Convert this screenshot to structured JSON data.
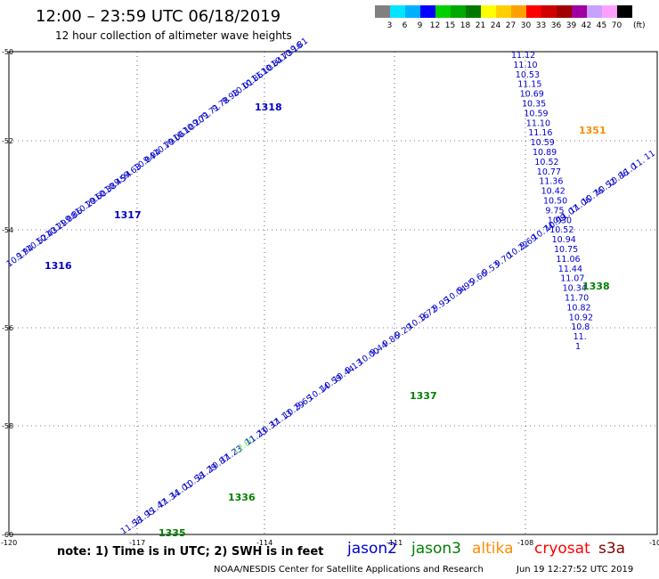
{
  "header": {
    "title": "12:00 – 23:59 UTC 06/18/2019",
    "subtitle": "12 hour collection of altimeter wave heights"
  },
  "colorbar": {
    "unit": "(ft)",
    "labels": [
      "3",
      "6",
      "9",
      "12",
      "15",
      "18",
      "21",
      "24",
      "27",
      "30",
      "33",
      "36",
      "39",
      "42",
      "45",
      "70"
    ],
    "colors": [
      "#808080",
      "#00e5ff",
      "#00b0ff",
      "#0000ff",
      "#00d000",
      "#00a800",
      "#007800",
      "#ffff00",
      "#ffd000",
      "#ffa000",
      "#ff0000",
      "#d00000",
      "#a00000",
      "#a000a0",
      "#c8a0ff",
      "#ffa0ff",
      "#000000"
    ]
  },
  "map": {
    "lat_labels": [
      "-50",
      "-52",
      "-54",
      "-56",
      "-58",
      "-60"
    ],
    "lon_labels": [
      "-120",
      "-117",
      "-114",
      "-111",
      "-108",
      "-105"
    ],
    "tracks": [
      {
        "pass": "1316",
        "sat": "jason2",
        "values": [
          "10.17",
          "9.94",
          "10.52",
          "10.43",
          "10.29",
          "11.08",
          "9.86",
          "10.29",
          "10.60",
          "10.38",
          "10.45",
          "9.94",
          "9.63",
          "10.04",
          "9.94",
          "10.79",
          "10.06",
          "10.10",
          "10.20",
          "9.71",
          "9.71",
          "9.78",
          "9.98",
          "10.01",
          "10.86",
          "11.10",
          "10.84",
          "10.73",
          "10.16",
          "9.81"
        ]
      },
      {
        "pass": "1317",
        "sat": "jason2"
      },
      {
        "pass": "1318",
        "sat": "jason2"
      },
      {
        "pass": "1351",
        "sat": "altika",
        "values": [
          "11.12",
          "11.10",
          "10.53",
          "11.15",
          "10.69",
          "10.35",
          "10.59",
          "11.10",
          "11.16",
          "10.59",
          "10.89",
          "10.52",
          "10.77",
          "11.36",
          "10.42",
          "10.50",
          "9.75",
          "10.30",
          "10.52",
          "10.94",
          "10.75",
          "11.06",
          "11.44",
          "11.07",
          "10.34",
          "11.70",
          "10.82",
          "10.92",
          "10.8",
          "11.",
          "1"
        ]
      },
      {
        "pass": "1335",
        "sat": "jason3",
        "values": [
          "11.58",
          "11.95",
          "11.47",
          "11.34",
          "11.01",
          "10.58",
          "11.29",
          "10.87",
          "11.23",
          "12.80",
          "11.23",
          "10.37",
          "11.13",
          "10.29",
          "9.65",
          "10.14",
          "10.59",
          "10.44",
          "9.13",
          "10.00",
          "9.44",
          "9.86",
          "9.29",
          "10.16",
          "9.72",
          "9.95",
          "10.04",
          "9.95",
          "9.66",
          "9.53",
          "9.70",
          "10.22",
          "9.69",
          "10.74",
          "10.99",
          "11.07",
          "11.06",
          "10.76",
          "10.52",
          "10.86",
          "11.0",
          "11.",
          "11"
        ]
      },
      {
        "pass": "1336",
        "sat": "jason3"
      },
      {
        "pass": "1337",
        "sat": "jason3"
      },
      {
        "pass": "1338",
        "sat": "jason3"
      }
    ]
  },
  "footer": {
    "note": "note: 1) Time is in UTC; 2) SWH is in feet",
    "legend": [
      {
        "name": "jason2",
        "color": "#0000cc"
      },
      {
        "name": "jason3",
        "color": "#008000"
      },
      {
        "name": "altika",
        "color": "#ff8c00"
      },
      {
        "name": "cryosat",
        "color": "#ff0000"
      },
      {
        "name": "s3a",
        "color": "#800000"
      }
    ],
    "credit": "NOAA/NESDIS Center for Satellite Applications and Research",
    "timestamp": "Jun 19 12:27:52 UTC 2019"
  }
}
